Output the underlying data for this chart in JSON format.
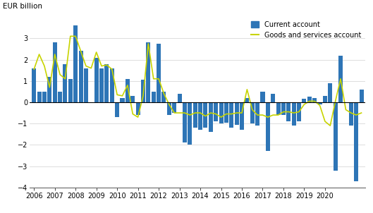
{
  "bar_values": [
    1.6,
    0.5,
    0.5,
    1.2,
    2.8,
    0.5,
    1.8,
    1.1,
    3.6,
    2.4,
    1.6,
    -0.05,
    2.1,
    1.6,
    1.8,
    1.6,
    -0.7,
    0.2,
    1.1,
    0.3,
    -0.6,
    1.05,
    2.8,
    0.5,
    2.75,
    0.5,
    -0.6,
    -0.5,
    0.4,
    -1.9,
    -2.0,
    -1.2,
    -1.3,
    -1.2,
    -1.4,
    -0.9,
    -1.0,
    -0.95,
    -1.2,
    -1.05,
    -1.3,
    0.2,
    -1.0,
    -1.1,
    0.5,
    -2.3,
    0.4,
    -0.6,
    -0.6,
    -0.9,
    -1.1,
    -0.9,
    0.15,
    0.25,
    0.2,
    -0.1,
    0.3,
    0.9,
    -3.2,
    2.2,
    -0.05,
    -1.1,
    -3.7,
    0.6
  ],
  "line_values": [
    1.55,
    2.25,
    1.7,
    0.7,
    2.25,
    1.3,
    1.1,
    3.1,
    3.1,
    2.4,
    1.7,
    1.6,
    2.35,
    1.7,
    1.75,
    1.55,
    0.35,
    0.3,
    0.8,
    -0.55,
    -0.7,
    0.3,
    2.75,
    1.1,
    1.1,
    0.4,
    -0.1,
    -0.5,
    -0.5,
    -0.5,
    -0.6,
    -0.5,
    -0.5,
    -0.65,
    -0.5,
    -0.55,
    -0.7,
    -0.55,
    -0.55,
    -0.5,
    -0.5,
    0.6,
    -0.35,
    -0.6,
    -0.6,
    -0.7,
    -0.6,
    -0.6,
    -0.45,
    -0.45,
    -0.5,
    -0.45,
    -0.1,
    0.05,
    0.05,
    -0.15,
    -0.9,
    -1.1,
    0.05,
    1.1,
    -0.35,
    -0.5,
    -0.6,
    -0.5
  ],
  "n_quarters": 64,
  "start_year": 2006,
  "bar_color": "#2e75b6",
  "line_color": "#c8d400",
  "ylabel": "EUR billion",
  "ylim": [
    -4,
    4
  ],
  "yticks": [
    -4,
    -3,
    -2,
    -1,
    0,
    1,
    2,
    3
  ],
  "xtick_years": [
    2006,
    2007,
    2008,
    2009,
    2010,
    2011,
    2012,
    2013,
    2014,
    2015,
    2016,
    2017,
    2018,
    2019,
    2020
  ],
  "legend_bar_label": "Current account",
  "legend_line_label": "Goods and services account",
  "background_color": "#ffffff",
  "grid_color": "#d0d0d0"
}
